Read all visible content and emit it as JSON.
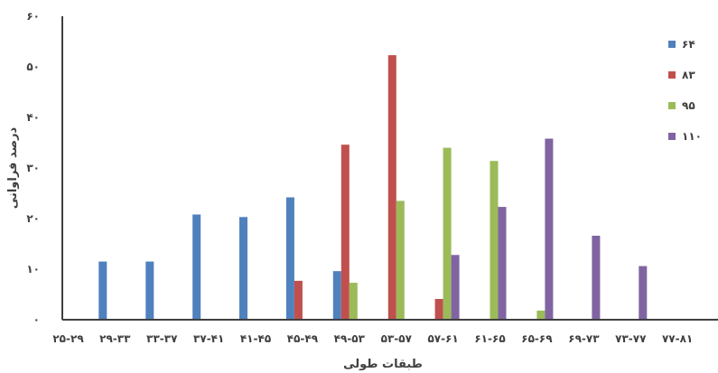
{
  "chart_data": {
    "type": "bar",
    "categories": [
      "۲۵-۲۹",
      "۲۹-۳۳",
      "۳۳-۳۷",
      "۳۷-۴۱",
      "۴۱-۴۵",
      "۴۵-۴۹",
      "۴۹-۵۳",
      "۵۳-۵۷",
      "۵۷-۶۱",
      "۶۱-۶۵",
      "۶۵-۶۹",
      "۶۹-۷۳",
      "۷۳-۷۷",
      "۷۷-۸۱"
    ],
    "series": [
      {
        "name": "۶۴",
        "color": "#4F81BD",
        "values": [
          0,
          11.5,
          11.5,
          20.8,
          20.3,
          24.2,
          9.6,
          0,
          0,
          0,
          0,
          0,
          0,
          0
        ]
      },
      {
        "name": "۸۳",
        "color": "#C0504D",
        "values": [
          0,
          0,
          0,
          0,
          0,
          7.7,
          34.6,
          52.3,
          4.1,
          0,
          0,
          0,
          0,
          0
        ]
      },
      {
        "name": "۹۵",
        "color": "#9BBB59",
        "values": [
          0,
          0,
          0,
          0,
          0,
          0,
          7.3,
          23.5,
          34.0,
          31.4,
          1.8,
          0,
          0,
          0
        ]
      },
      {
        "name": "۱۱۰",
        "color": "#8064A2",
        "values": [
          0,
          0,
          0,
          0,
          0,
          0,
          0,
          0,
          12.8,
          22.3,
          35.8,
          16.6,
          10.6,
          0
        ]
      }
    ],
    "ylim": [
      0,
      60
    ],
    "yticks": [
      "۰",
      "۱۰",
      "۲۰",
      "۳۰",
      "۴۰",
      "۵۰",
      "۶۰"
    ],
    "ylabel": "درصد فراوانی",
    "xlabel": "طبقات طولی",
    "grid": false,
    "legend_position": "right"
  }
}
